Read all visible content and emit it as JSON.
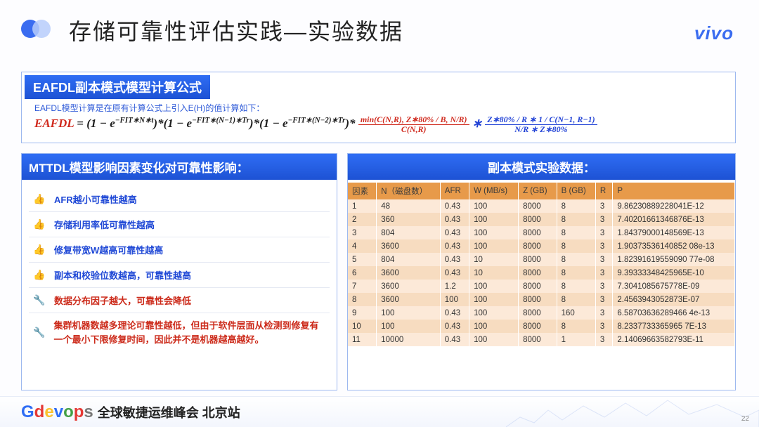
{
  "title": "存储可靠性评估实践—实验数据",
  "brand": "vivo",
  "formula_panel": {
    "header": "EAFDL副本模式模型计算公式",
    "desc": "EAFDL模型计算是在原有计算公式上引入E(H)的值计算如下：",
    "colors": {
      "red": "#d02a1e",
      "blue": "#2243d6"
    },
    "expr_prefix_red": "EAFDL",
    "expr_eq": " = (1 − e",
    "exp1": "−FIT∗N∗t",
    "mid1": ")*(1 − e",
    "exp2": "−FIT∗(N−1)∗Tr",
    "mid2": ")*(1 − e",
    "exp3": "−FIT∗(N−2)∗Tr",
    "mid3": ")* ",
    "red_frac_num": "min(C(N,R), Z∗80% / B, N/R)",
    "red_frac_den": "C(N,R)",
    "star": " ∗ ",
    "blue_top_left": "Z∗80% / R",
    "blue_top_right": "1 / C(N−1, R−1)",
    "blue_bot": "N/R ∗ Z∗80%"
  },
  "factors_panel": {
    "header": "MTTDL模型影响因素变化对可靠性影响：",
    "items": [
      {
        "icon": "thumbs-up",
        "icon_color": "#2f6df4",
        "text_color": "blue",
        "text": "AFR越小可靠性越高"
      },
      {
        "icon": "thumbs-up",
        "icon_color": "#2f6df4",
        "text_color": "blue",
        "text": "存储利用率低可靠性越高"
      },
      {
        "icon": "thumbs-up",
        "icon_color": "#2f6df4",
        "text_color": "blue",
        "text": "修复带宽W越高可靠性越高"
      },
      {
        "icon": "thumbs-up",
        "icon_color": "#2f6df4",
        "text_color": "blue",
        "text": "副本和校验位数越高，可靠性越高"
      },
      {
        "icon": "wrench",
        "icon_color": "#d77a1a",
        "text_color": "red",
        "text": "数据分布因子越大，可靠性会降低"
      },
      {
        "icon": "wrench",
        "icon_color": "#d77a1a",
        "text_color": "red",
        "text": "集群机器数越多理论可靠性越低，但由于软件层面从检测到修复有一个最小下限修复时间，因此并不是机器越高越好。"
      }
    ]
  },
  "data_panel": {
    "header": "副本模式实验数据：",
    "header_bg": "#e79a4a",
    "row_odd_bg": "#fce9d8",
    "row_even_bg": "#f7dcc0",
    "columns": [
      "因素",
      "N（磁盘数）",
      "AFR",
      "W (MB/s)",
      "Z (GB)",
      "B (GB)",
      "R",
      "P"
    ],
    "rows": [
      [
        "1",
        "48",
        "0.43",
        "100",
        "8000",
        "8",
        "3",
        "9.86230889228041E-12"
      ],
      [
        "2",
        "360",
        "0.43",
        "100",
        "8000",
        "8",
        "3",
        "7.40201661346876E-13"
      ],
      [
        "3",
        "804",
        "0.43",
        "100",
        "8000",
        "8",
        "3",
        "1.84379000148569E-13"
      ],
      [
        "4",
        "3600",
        "0.43",
        "100",
        "8000",
        "8",
        "3",
        "1.90373536140852 08e-13"
      ],
      [
        "5",
        "804",
        "0.43",
        "10",
        "8000",
        "8",
        "3",
        "1.82391619559090 77e-08"
      ],
      [
        "6",
        "3600",
        "0.43",
        "10",
        "8000",
        "8",
        "3",
        "9.39333348425965E-10"
      ],
      [
        "7",
        "3600",
        "1.2",
        "100",
        "8000",
        "8",
        "3",
        "7.3041085675778E-09"
      ],
      [
        "8",
        "3600",
        "100",
        "100",
        "8000",
        "8",
        "3",
        "2.4563943052873E-07"
      ],
      [
        "9",
        "100",
        "0.43",
        "100",
        "8000",
        "160",
        "3",
        "6.58703636289466 4e-13"
      ],
      [
        "10",
        "100",
        "0.43",
        "100",
        "8000",
        "8",
        "3",
        "8.2337733365965 7E-13"
      ],
      [
        "11",
        "10000",
        "0.43",
        "100",
        "8000",
        "1",
        "3",
        "2.14069663582793E-11"
      ]
    ]
  },
  "footer": {
    "logo_text": "Gdevops",
    "subtitle": "全球敏捷运维峰会  北京站",
    "page": "22"
  }
}
